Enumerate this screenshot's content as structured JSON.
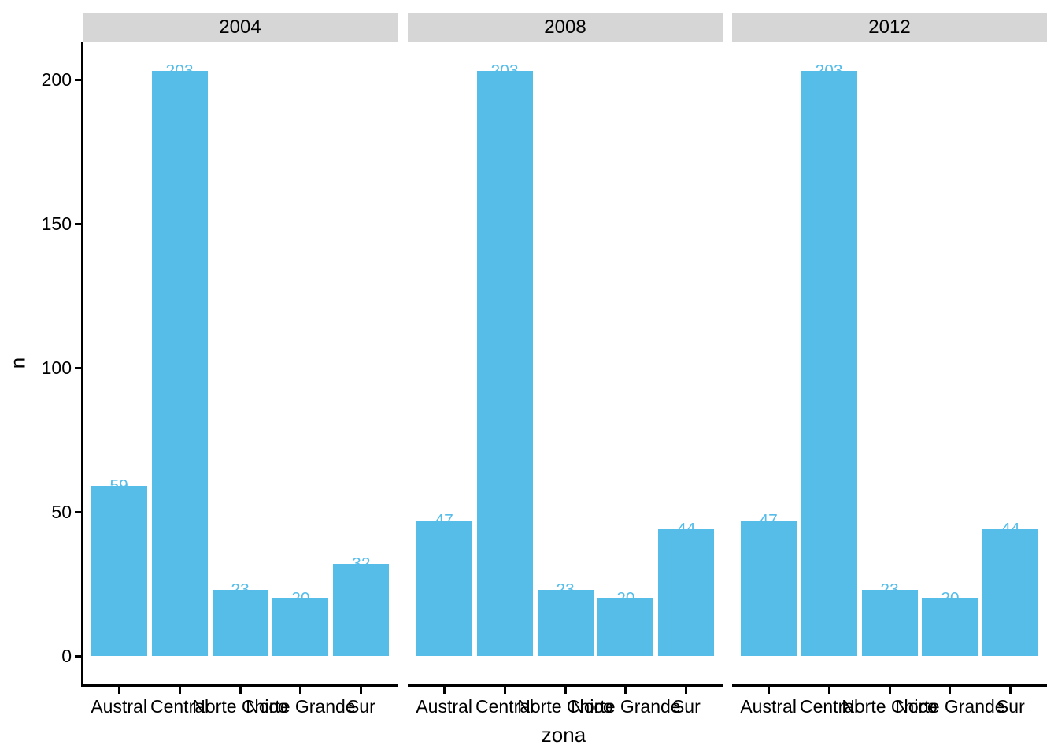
{
  "chart_data": {
    "type": "bar",
    "title": "",
    "xlabel": "zona",
    "ylabel": "n",
    "categories": [
      "Austral",
      "Central",
      "Norte Chico",
      "Norte Grande",
      "Sur"
    ],
    "facets": [
      {
        "label": "2004",
        "values": [
          59,
          203,
          23,
          20,
          32
        ]
      },
      {
        "label": "2008",
        "values": [
          47,
          203,
          23,
          20,
          44
        ]
      },
      {
        "label": "2012",
        "values": [
          47,
          203,
          23,
          20,
          44
        ]
      }
    ],
    "y_ticks": [
      0,
      50,
      100,
      150,
      200
    ],
    "ylim": [
      -10,
      213
    ],
    "grid": false,
    "legend": "none",
    "bar_labels_shown": true,
    "bar_color": "#56BDE9",
    "bar_label_color": "#56BDE9",
    "strip_fill": "#D6D6D6",
    "axis_color": "#000000",
    "text_color": "#000000"
  }
}
